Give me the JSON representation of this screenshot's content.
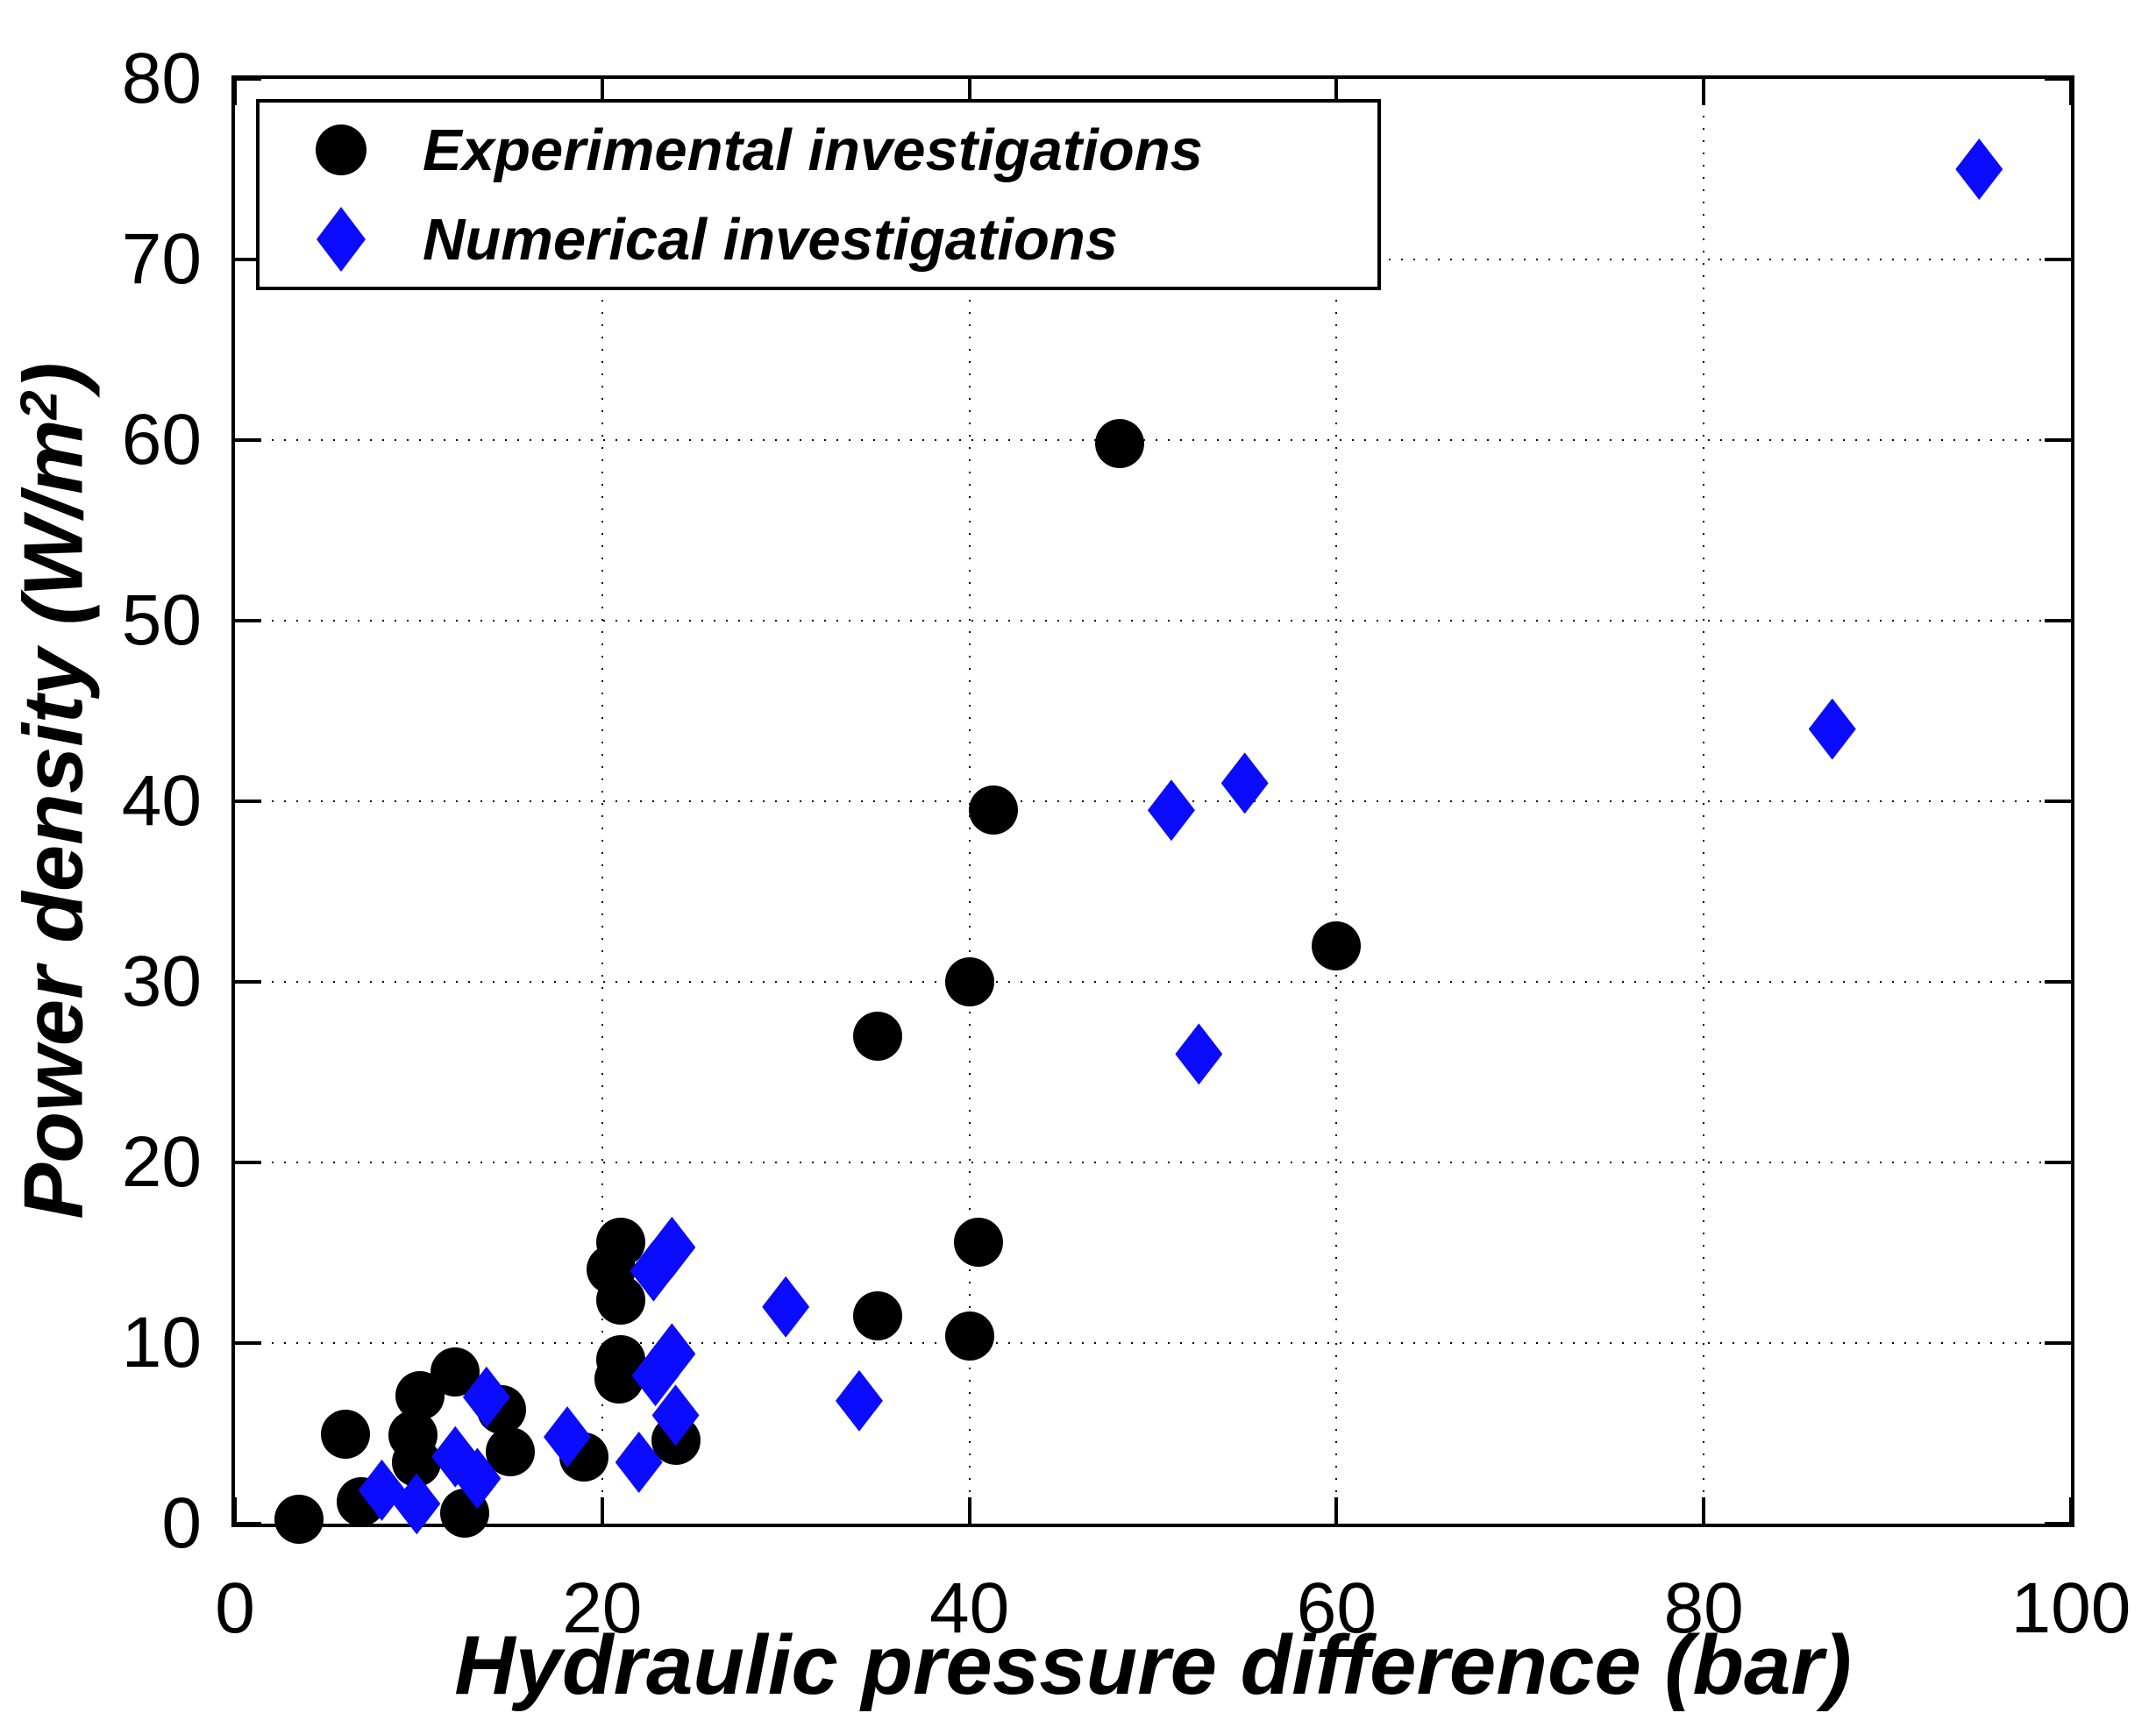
{
  "figure": {
    "background": "#ffffff",
    "axis_color": "#000000",
    "grid_style": "dotted"
  },
  "chart_data": {
    "type": "scatter",
    "title": "",
    "xlabel": "Hydraulic pressure difference (bar)",
    "ylabel_pre": "Power density (W/m",
    "ylabel_sup": "2",
    "ylabel_post": ")",
    "xlim": [
      0,
      100
    ],
    "ylim": [
      0,
      80
    ],
    "xticks": [
      0,
      20,
      40,
      60,
      80,
      100
    ],
    "yticks": [
      0,
      10,
      20,
      30,
      40,
      50,
      60,
      70,
      80
    ],
    "grid": {
      "x": [
        20,
        40,
        60,
        80
      ],
      "y": [
        10,
        20,
        30,
        40,
        50,
        60,
        70
      ]
    },
    "legend_position": "top-left",
    "series": [
      {
        "name": "Experimental investigations",
        "marker": "circle",
        "color": "#000000",
        "points": [
          [
            3.5,
            0.25
          ],
          [
            6.0,
            4.95
          ],
          [
            6.9,
            1.2
          ],
          [
            9.7,
            4.9
          ],
          [
            9.9,
            3.4
          ],
          [
            10.1,
            7.1
          ],
          [
            12.0,
            8.4
          ],
          [
            12.5,
            0.6
          ],
          [
            14.5,
            6.3
          ],
          [
            15.0,
            4.0
          ],
          [
            19.0,
            3.7
          ],
          [
            20.5,
            14.1
          ],
          [
            21.0,
            15.6
          ],
          [
            21.0,
            12.4
          ],
          [
            21.0,
            9.1
          ],
          [
            20.9,
            8.0
          ],
          [
            24.0,
            4.6
          ],
          [
            35.0,
            11.5
          ],
          [
            35.0,
            27.0
          ],
          [
            40.0,
            10.4
          ],
          [
            40.0,
            30.0
          ],
          [
            40.5,
            15.6
          ],
          [
            41.3,
            39.5
          ],
          [
            48.2,
            59.8
          ],
          [
            60.0,
            32.0
          ]
        ]
      },
      {
        "name": "Numerical investigations",
        "marker": "diamond",
        "color": "#0b0bff",
        "points": [
          [
            8.0,
            1.85
          ],
          [
            9.9,
            1.1
          ],
          [
            12.0,
            3.7
          ],
          [
            13.2,
            2.5
          ],
          [
            13.7,
            7.0
          ],
          [
            18.1,
            4.8
          ],
          [
            22.0,
            3.4
          ],
          [
            22.9,
            8.2
          ],
          [
            23.8,
            9.4
          ],
          [
            24.0,
            6.0
          ],
          [
            22.8,
            14.0
          ],
          [
            23.8,
            15.3
          ],
          [
            30.0,
            12.0
          ],
          [
            34.0,
            6.8
          ],
          [
            51.0,
            39.5
          ],
          [
            55.0,
            41.0
          ],
          [
            52.5,
            26.0
          ],
          [
            87.0,
            44.0
          ],
          [
            95.0,
            75.0
          ]
        ]
      }
    ]
  }
}
